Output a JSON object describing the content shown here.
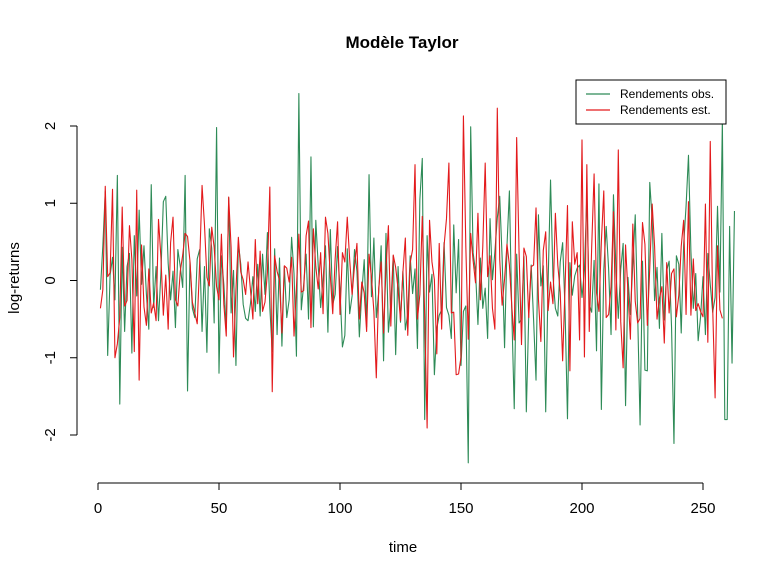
{
  "chart_data": {
    "type": "line",
    "title": "Modèle Taylor",
    "xlabel": "time",
    "ylabel": "log-returns",
    "xlim": [
      1,
      252
    ],
    "ylim": [
      -2.4,
      2.4
    ],
    "grid": false,
    "legend_position": "top-right",
    "x_ticks": [
      0,
      50,
      100,
      150,
      200,
      250
    ],
    "x_tick_labels": [
      "0",
      "50",
      "100",
      "150",
      "200",
      "250"
    ],
    "y_ticks": [
      -2,
      -1,
      0,
      1,
      2
    ],
    "y_tick_labels": [
      "-2",
      "-1",
      "0",
      "1",
      "2"
    ],
    "series": [
      {
        "name": "Rendements obs.",
        "color": "#2e8b57",
        "values": [
          -0.12,
          0.45,
          1.15,
          -0.97,
          0.07,
          0.3,
          -0.25,
          1.36,
          -1.6,
          0.43,
          -0.66,
          0.18,
          0.35,
          -0.94,
          0.58,
          -0.2,
          0.91,
          -0.05,
          0.45,
          -0.18,
          -0.63,
          1.24,
          -0.35,
          0.18,
          -0.52,
          0.1,
          1.02,
          1.09,
          0.22,
          -0.25,
          0.12,
          -0.61,
          0.4,
          0.18,
          -0.09,
          1.36,
          -1.43,
          0.25,
          -0.36,
          -0.48,
          0.28,
          0.4,
          -0.66,
          0.18,
          -0.93,
          0.67,
          0.42,
          -0.55,
          1.98,
          -1.2,
          0.32,
          -0.05,
          -0.63,
          1.07,
          -0.42,
          0.13,
          -1.1,
          0.48,
          0.21,
          -0.31,
          -0.49,
          -0.52,
          -0.3,
          0.05,
          -0.4,
          0.21,
          -0.46,
          0.34,
          -0.18,
          0.62,
          -0.35,
          -0.92,
          0.41,
          -0.7,
          0.29,
          -0.85,
          0.18,
          -0.48,
          -0.25,
          0.56,
          0.09,
          -0.98,
          2.42,
          -0.38,
          -0.05,
          0.34,
          -0.5,
          1.6,
          -0.6,
          0.78,
          0.19,
          -0.35,
          0.02,
          0.45,
          -0.67,
          0.66,
          -0.31,
          -0.18,
          0.44,
          -0.12,
          -0.86,
          -0.71,
          0.41,
          -0.43,
          -0.2,
          0.4,
          0.12,
          -0.73,
          -0.16,
          0.27,
          -0.6,
          1.37,
          -0.21,
          0.55,
          -0.48,
          -0.15,
          0.45,
          -1.04,
          0.61,
          -0.67,
          -0.3,
          0.32,
          -0.96,
          0.18,
          -0.54,
          0.12,
          -0.64,
          -0.43,
          0.32,
          -0.17,
          0.15,
          -0.88,
          1.05,
          1.58,
          -1.8,
          0.58,
          -0.15,
          0.08,
          -1.22,
          -0.62,
          -0.45,
          -0.38,
          0.49,
          -0.35,
          -0.45,
          -0.75,
          0.72,
          -0.16,
          0.53,
          -1.1,
          -0.4,
          -0.33,
          -2.36,
          1.99,
          0.36,
          0.12,
          -0.57,
          0.29,
          -0.36,
          -0.1,
          -0.75,
          0.8,
          0.01,
          0.37,
          0.81,
          1.09,
          0.29,
          -0.87,
          0.45,
          1.16,
          -0.43,
          -1.66,
          0.34,
          -0.55,
          -0.5,
          0.31,
          -1.7,
          -0.44,
          0.2,
          -0.51,
          -1.29,
          0.85,
          -0.07,
          0.19,
          -1.7,
          -0.02,
          1.3,
          0.06,
          -0.36,
          -0.46,
          0.24,
          0.49,
          -0.38,
          -1.79,
          0.23,
          -0.19,
          0.06,
          0.16,
          0.2,
          -0.22,
          0.13,
          1.1,
          -0.31,
          -0.41,
          0.26,
          -0.91,
          1.25,
          -1.67,
          0.14,
          0.7,
          0.15,
          -0.7,
          1.11,
          0.16,
          -0.49,
          0.14,
          0.48,
          -1.62,
          0.04,
          -0.44,
          0.21,
          0.85,
          -0.43,
          -1.87,
          0.25,
          -1.16,
          -1.17,
          1.27,
          0.78,
          -0.26,
          0.17,
          -0.62,
          0.61,
          -0.51,
          0.13,
          0.25,
          -0.6,
          -2.11,
          0.32,
          0.21,
          -0.68,
          0.46,
          0.96,
          1.62,
          0.38,
          -0.36,
          0.09,
          -0.78,
          -0.47,
          0.05,
          -0.7,
          0.35,
          -0.05,
          -0.41,
          -0.22,
          0.96,
          -0.15,
          2.07,
          -1.8,
          -1.8,
          0.7,
          -1.07,
          0.9
        ]
      },
      {
        "name": "Rendements est.",
        "color": "#e31a1c",
        "values": [
          -0.36,
          -0.12,
          1.22,
          0.05,
          0.1,
          1.18,
          -1.0,
          -0.82,
          -0.48,
          0.95,
          -0.33,
          -0.26,
          0.71,
          0.27,
          -0.92,
          1.17,
          -1.29,
          0.46,
          -0.34,
          -0.58,
          0.15,
          -0.42,
          -0.29,
          -0.52,
          0.79,
          0.3,
          -0.45,
          0.07,
          -0.63,
          0.49,
          0.82,
          -0.25,
          -0.33,
          0.12,
          0.33,
          0.61,
          0.57,
          0.25,
          -0.28,
          -0.42,
          -0.56,
          0.22,
          1.23,
          0.72,
          0.04,
          -0.07,
          0.69,
          0.43,
          -0.08,
          -0.25,
          0.6,
          -0.31,
          -0.72,
          1.08,
          0.43,
          -0.99,
          -0.12,
          0.56,
          0.11,
          0.01,
          -0.18,
          0.24,
          -0.12,
          -0.5,
          0.53,
          -0.3,
          0.38,
          -0.4,
          -0.28,
          0.1,
          1.21,
          -1.44,
          0.32,
          0.12,
          0.0,
          -0.68,
          0.19,
          0.16,
          -0.02,
          0.3,
          -0.72,
          -0.09,
          0.6,
          -0.15,
          -0.13,
          0.58,
          0.77,
          -0.61,
          0.67,
          0.18,
          -0.11,
          0.36,
          -0.43,
          0.82,
          0.61,
          0.06,
          -0.43,
          0.28,
          0.76,
          -0.44,
          0.36,
          0.24,
          0.82,
          0.27,
          -0.18,
          0.19,
          0.48,
          -0.5,
          -0.02,
          -0.16,
          -0.66,
          0.34,
          0.04,
          -0.4,
          -1.26,
          -0.1,
          0.24,
          -0.68,
          0.15,
          0.71,
          -0.59,
          0.33,
          0.17,
          -0.11,
          -0.52,
          0.11,
          0.55,
          -0.71,
          0.23,
          0.4,
          1.5,
          -0.5,
          -0.18,
          0.83,
          -0.46,
          -1.91,
          0.78,
          0.24,
          0.01,
          -0.95,
          0.48,
          -0.63,
          0.45,
          0.8,
          1.52,
          -0.42,
          -0.41,
          -1.22,
          -1.21,
          -0.99,
          2.13,
          0.43,
          -0.76,
          0.61,
          0.26,
          -0.03,
          0.87,
          -0.25,
          0.44,
          1.52,
          0.05,
          0.32,
          -0.36,
          -0.63,
          2.23,
          0.27,
          -0.32,
          0.02,
          0.47,
          0.2,
          -0.34,
          -0.77,
          1.85,
          0.36,
          -0.83,
          0.42,
          0.31,
          -0.48,
          0.18,
          0.2,
          0.94,
          -0.24,
          -0.79,
          0.39,
          0.63,
          -0.39,
          -0.02,
          -0.3,
          0.87,
          0.2,
          -0.15,
          -1.04,
          -0.08,
          0.97,
          -1.17,
          0.76,
          0.21,
          0.36,
          -0.77,
          1.82,
          -0.99,
          1.5,
          -0.66,
          0.43,
          1.38,
          -0.16,
          -0.4,
          0.5,
          1.16,
          -0.48,
          -0.44,
          -0.08,
          0.89,
          -0.64,
          1.69,
          -0.53,
          -1.13,
          0.46,
          -0.16,
          -0.76,
          0.73,
          -0.27,
          -0.55,
          -0.49,
          0.75,
          0.47,
          -0.58,
          0.16,
          0.99,
          0.44,
          -0.5,
          -0.23,
          -0.08,
          -0.81,
          0.23,
          -0.42,
          0.09,
          0.15,
          -0.47,
          -0.19,
          0.44,
          0.78,
          -0.44,
          1.02,
          -0.45,
          0.28,
          -0.39,
          -0.3,
          -0.4,
          -0.47,
          0.99,
          -0.8,
          1.8,
          -0.35,
          -1.52,
          0.45,
          -0.38,
          -0.49
        ]
      }
    ]
  }
}
